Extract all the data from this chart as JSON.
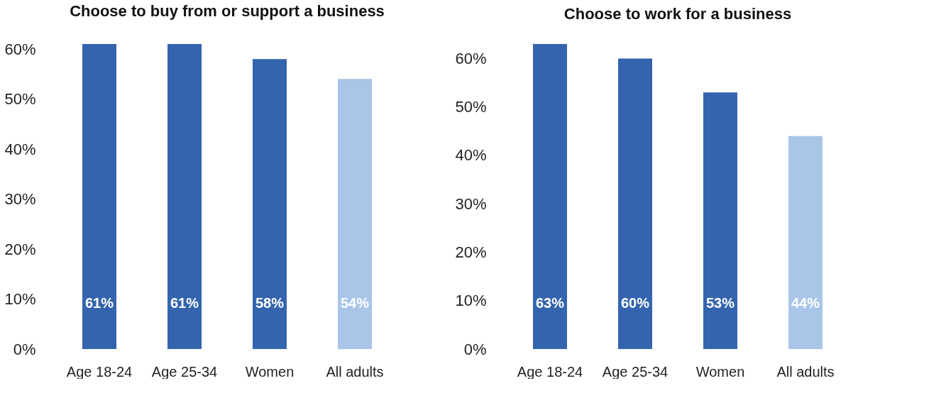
{
  "chart_data": [
    {
      "type": "bar",
      "title": "Choose to buy from or support a business",
      "categories": [
        "Age 18-24",
        "Age 25-34",
        "Women",
        "All adults"
      ],
      "values": [
        61,
        61,
        58,
        54
      ],
      "colors": [
        "#3464ae",
        "#3464ae",
        "#3464ae",
        "#a9c5e8"
      ],
      "value_labels": [
        "61%",
        "61%",
        "58%",
        "54%"
      ],
      "ylim": [
        0,
        61
      ],
      "yticks": [
        {
          "value": 0,
          "label": "0%"
        },
        {
          "value": 10,
          "label": "10%"
        },
        {
          "value": 20,
          "label": "20%"
        },
        {
          "value": 30,
          "label": "30%"
        },
        {
          "value": 40,
          "label": "40%"
        },
        {
          "value": 50,
          "label": "50%"
        },
        {
          "value": 60,
          "label": "60%"
        }
      ],
      "grid": false
    },
    {
      "type": "bar",
      "title": "Choose to work for a business",
      "categories": [
        "Age 18-24",
        "Age 25-34",
        "Women",
        "All adults"
      ],
      "values": [
        63,
        60,
        53,
        44
      ],
      "colors": [
        "#3464ae",
        "#3464ae",
        "#3464ae",
        "#a9c5e8"
      ],
      "value_labels": [
        "63%",
        "60%",
        "53%",
        "44%"
      ],
      "ylim": [
        0,
        63
      ],
      "yticks": [
        {
          "value": 0,
          "label": "0%"
        },
        {
          "value": 10,
          "label": "10%"
        },
        {
          "value": 20,
          "label": "20%"
        },
        {
          "value": 30,
          "label": "30%"
        },
        {
          "value": 40,
          "label": "40%"
        },
        {
          "value": 50,
          "label": "50%"
        },
        {
          "value": 60,
          "label": "60%"
        }
      ],
      "grid": false
    }
  ]
}
